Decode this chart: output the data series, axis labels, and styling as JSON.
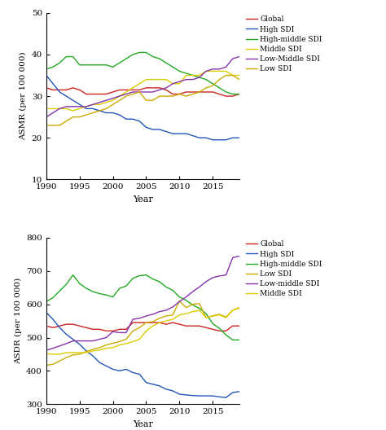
{
  "years": [
    1990,
    1991,
    1992,
    1993,
    1994,
    1995,
    1996,
    1997,
    1998,
    1999,
    2000,
    2001,
    2002,
    2003,
    2004,
    2005,
    2006,
    2007,
    2008,
    2009,
    2010,
    2011,
    2012,
    2013,
    2014,
    2015,
    2016,
    2017,
    2018,
    2019
  ],
  "top": {
    "ylabel": "ASMR (per 100 000)",
    "xlabel": "Year",
    "ylim": [
      10,
      50
    ],
    "yticks": [
      10,
      20,
      30,
      40,
      50
    ],
    "xticks": [
      1990,
      1995,
      2000,
      2005,
      2010,
      2015
    ],
    "series": {
      "Global": {
        "color": "#cc2222",
        "data": [
          32,
          31.5,
          31.5,
          31.5,
          32,
          31.5,
          30.5,
          30.5,
          30.5,
          30.5,
          31,
          31.5,
          31.5,
          31.5,
          31.5,
          32,
          32,
          32,
          31.5,
          30.5,
          30.5,
          31,
          31,
          31,
          31,
          31,
          30.5,
          30,
          30,
          30.5
        ]
      },
      "High SDI": {
        "color": "#2255bb",
        "data": [
          35,
          33,
          31,
          30,
          29,
          28,
          27,
          27,
          26.5,
          26,
          26,
          25.5,
          24.5,
          24.5,
          24,
          22.5,
          22,
          22,
          21.5,
          21,
          21,
          21,
          20.5,
          20,
          20,
          19.5,
          19.5,
          19.5,
          20,
          20
        ]
      },
      "High-middle SDI": {
        "color": "#22aa22",
        "data": [
          36.5,
          37,
          38,
          39.5,
          39.5,
          37.5,
          37.5,
          37.5,
          37.5,
          37.5,
          37,
          38,
          39,
          40,
          40.5,
          40.5,
          39.5,
          39,
          38,
          37,
          36,
          35.5,
          35,
          34.5,
          34,
          33,
          32,
          31,
          30.5,
          30.5
        ]
      },
      "Middle SDI": {
        "color": "#ddcc00",
        "data": [
          27,
          27,
          27,
          27,
          26.5,
          27,
          27.5,
          28,
          28,
          28.5,
          29,
          30,
          31,
          32,
          33,
          34,
          34,
          34,
          34,
          33,
          33,
          35,
          35,
          35,
          36,
          36,
          36,
          36,
          35,
          35
        ]
      },
      "Low-Middle SDI": {
        "color": "#8833aa",
        "data": [
          25,
          26,
          27,
          27.5,
          27.5,
          27.5,
          27.5,
          28,
          28.5,
          29,
          29.5,
          30,
          30.5,
          31,
          31,
          31,
          31,
          31.5,
          32,
          33,
          33.5,
          34,
          34,
          34.5,
          36,
          36.5,
          36.5,
          37,
          39,
          39.5
        ]
      },
      "Low SDI": {
        "color": "#ccaa00",
        "data": [
          23,
          23,
          23,
          24,
          25,
          25,
          25.5,
          26,
          26.5,
          27,
          28,
          29,
          30,
          30.5,
          31,
          29,
          29,
          30,
          30,
          30,
          30.5,
          30,
          30.5,
          31,
          32,
          32.5,
          34,
          35,
          35,
          34
        ]
      }
    },
    "legend_order": [
      "Global",
      "High SDI",
      "High-middle SDI",
      "Middle SDI",
      "Low-Middle SDI",
      "Low SDI"
    ]
  },
  "bottom": {
    "ylabel": "ASDR (per 100 000)",
    "xlabel": "Year",
    "ylim": [
      300,
      800
    ],
    "yticks": [
      300,
      400,
      500,
      600,
      700,
      800
    ],
    "xticks": [
      1990,
      1995,
      2000,
      2005,
      2010,
      2015
    ],
    "series": {
      "Global": {
        "color": "#cc2222",
        "data": [
          535,
          530,
          535,
          540,
          540,
          535,
          530,
          525,
          525,
          520,
          520,
          525,
          525,
          545,
          545,
          545,
          545,
          545,
          540,
          545,
          540,
          535,
          535,
          535,
          530,
          525,
          520,
          520,
          535,
          535
        ]
      },
      "High SDI": {
        "color": "#2255bb",
        "data": [
          575,
          555,
          530,
          510,
          495,
          480,
          460,
          445,
          425,
          415,
          405,
          400,
          405,
          395,
          390,
          365,
          360,
          355,
          345,
          340,
          330,
          328,
          326,
          325,
          325,
          325,
          322,
          320,
          335,
          338
        ]
      },
      "High-middle SDI": {
        "color": "#22aa22",
        "data": [
          608,
          620,
          640,
          660,
          688,
          662,
          648,
          638,
          632,
          628,
          622,
          648,
          655,
          678,
          686,
          688,
          676,
          668,
          652,
          642,
          622,
          612,
          598,
          588,
          572,
          542,
          528,
          508,
          493,
          493
        ]
      },
      "Low SDI": {
        "color": "#ccaa00",
        "data": [
          417,
          420,
          430,
          440,
          448,
          450,
          458,
          465,
          470,
          478,
          483,
          488,
          495,
          520,
          530,
          545,
          548,
          558,
          565,
          568,
          610,
          590,
          600,
          602,
          560,
          565,
          570,
          562,
          582,
          590
        ]
      },
      "Low-middle SDI": {
        "color": "#8833aa",
        "data": [
          462,
          468,
          475,
          482,
          490,
          490,
          490,
          490,
          495,
          500,
          518,
          515,
          515,
          555,
          558,
          565,
          570,
          578,
          582,
          592,
          608,
          622,
          638,
          652,
          668,
          680,
          685,
          688,
          740,
          745
        ]
      },
      "Middle SDI": {
        "color": "#ddcc00",
        "data": [
          452,
          450,
          450,
          455,
          455,
          455,
          455,
          460,
          463,
          468,
          470,
          478,
          482,
          488,
          495,
          520,
          535,
          545,
          550,
          555,
          568,
          572,
          578,
          582,
          560,
          565,
          568,
          560,
          582,
          588
        ]
      }
    },
    "legend_order": [
      "Global",
      "High SDI",
      "High-middle SDI",
      "Low SDI",
      "Low-middle SDI",
      "Middle SDI"
    ]
  },
  "fig_width": 4.74,
  "fig_height": 5.28,
  "dpi": 100
}
